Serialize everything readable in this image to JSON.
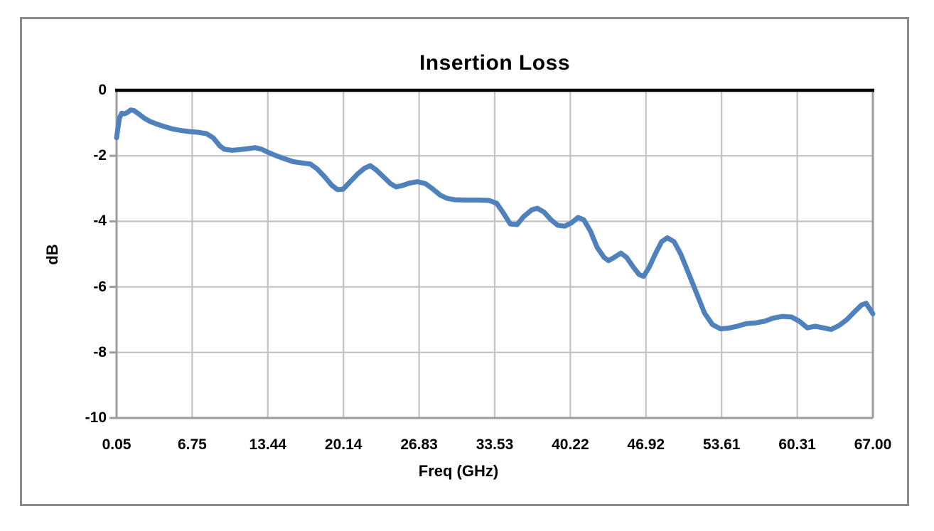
{
  "chart": {
    "title": "Insertion Loss",
    "x_axis_title": "Freq (GHz)",
    "y_axis_title": "dB"
  },
  "colors": {
    "series_line": "#4F81BD",
    "gridline": "#c3c3c3",
    "plot_border": "#9d9d9d",
    "zero_axis": "#000000",
    "chart_border": "#8a8a8a",
    "text": "#000000",
    "background": "#ffffff"
  },
  "chart_data": {
    "type": "line",
    "title": "Insertion Loss",
    "xlabel": "Freq (GHz)",
    "ylabel": "dB",
    "xlim": [
      0.05,
      67.0
    ],
    "ylim": [
      -10,
      0
    ],
    "x_tick_labels": [
      "0.05",
      "6.75",
      "13.44",
      "20.14",
      "26.83",
      "33.53",
      "40.22",
      "46.92",
      "53.61",
      "60.31",
      "67.00"
    ],
    "y_tick_labels": [
      "0",
      "-2",
      "-4",
      "-6",
      "-8",
      "-10"
    ],
    "grid": true,
    "legend": false,
    "series": [
      {
        "name": "Insertion Loss",
        "color": "#4F81BD",
        "points": [
          [
            0.05,
            -1.45
          ],
          [
            0.15,
            -1.2
          ],
          [
            0.3,
            -0.85
          ],
          [
            0.5,
            -0.7
          ],
          [
            0.75,
            -0.72
          ],
          [
            1.0,
            -0.68
          ],
          [
            1.3,
            -0.6
          ],
          [
            1.6,
            -0.62
          ],
          [
            2.0,
            -0.72
          ],
          [
            2.5,
            -0.85
          ],
          [
            3.0,
            -0.95
          ],
          [
            3.6,
            -1.03
          ],
          [
            4.2,
            -1.1
          ],
          [
            5.0,
            -1.18
          ],
          [
            5.8,
            -1.23
          ],
          [
            6.5,
            -1.26
          ],
          [
            7.2,
            -1.28
          ],
          [
            8.0,
            -1.32
          ],
          [
            8.6,
            -1.45
          ],
          [
            9.2,
            -1.7
          ],
          [
            9.6,
            -1.8
          ],
          [
            10.3,
            -1.83
          ],
          [
            11.0,
            -1.81
          ],
          [
            11.7,
            -1.78
          ],
          [
            12.3,
            -1.75
          ],
          [
            12.9,
            -1.8
          ],
          [
            13.5,
            -1.9
          ],
          [
            14.2,
            -2.0
          ],
          [
            15.0,
            -2.1
          ],
          [
            15.7,
            -2.18
          ],
          [
            16.5,
            -2.22
          ],
          [
            17.2,
            -2.25
          ],
          [
            17.8,
            -2.4
          ],
          [
            18.5,
            -2.65
          ],
          [
            19.1,
            -2.9
          ],
          [
            19.6,
            -3.03
          ],
          [
            20.1,
            -3.02
          ],
          [
            20.7,
            -2.8
          ],
          [
            21.4,
            -2.55
          ],
          [
            22.0,
            -2.38
          ],
          [
            22.5,
            -2.3
          ],
          [
            23.0,
            -2.42
          ],
          [
            23.7,
            -2.65
          ],
          [
            24.3,
            -2.85
          ],
          [
            24.8,
            -2.95
          ],
          [
            25.4,
            -2.9
          ],
          [
            26.0,
            -2.83
          ],
          [
            26.7,
            -2.79
          ],
          [
            27.4,
            -2.85
          ],
          [
            28.0,
            -3.0
          ],
          [
            28.7,
            -3.2
          ],
          [
            29.3,
            -3.3
          ],
          [
            30.0,
            -3.34
          ],
          [
            31.0,
            -3.35
          ],
          [
            32.0,
            -3.35
          ],
          [
            33.0,
            -3.36
          ],
          [
            33.7,
            -3.45
          ],
          [
            34.3,
            -3.75
          ],
          [
            34.9,
            -4.08
          ],
          [
            35.5,
            -4.1
          ],
          [
            36.1,
            -3.85
          ],
          [
            36.8,
            -3.65
          ],
          [
            37.3,
            -3.6
          ],
          [
            37.9,
            -3.72
          ],
          [
            38.5,
            -3.95
          ],
          [
            39.1,
            -4.12
          ],
          [
            39.7,
            -4.15
          ],
          [
            40.3,
            -4.05
          ],
          [
            40.9,
            -3.88
          ],
          [
            41.4,
            -3.95
          ],
          [
            42.0,
            -4.3
          ],
          [
            42.6,
            -4.8
          ],
          [
            43.2,
            -5.1
          ],
          [
            43.6,
            -5.2
          ],
          [
            44.1,
            -5.1
          ],
          [
            44.7,
            -4.97
          ],
          [
            45.2,
            -5.1
          ],
          [
            45.8,
            -5.4
          ],
          [
            46.3,
            -5.62
          ],
          [
            46.7,
            -5.68
          ],
          [
            47.2,
            -5.4
          ],
          [
            47.8,
            -4.95
          ],
          [
            48.3,
            -4.62
          ],
          [
            48.8,
            -4.5
          ],
          [
            49.4,
            -4.62
          ],
          [
            50.0,
            -5.0
          ],
          [
            50.7,
            -5.6
          ],
          [
            51.4,
            -6.2
          ],
          [
            52.1,
            -6.8
          ],
          [
            52.8,
            -7.15
          ],
          [
            53.5,
            -7.28
          ],
          [
            54.2,
            -7.26
          ],
          [
            55.0,
            -7.2
          ],
          [
            55.8,
            -7.12
          ],
          [
            56.6,
            -7.1
          ],
          [
            57.4,
            -7.05
          ],
          [
            58.2,
            -6.95
          ],
          [
            59.0,
            -6.9
          ],
          [
            59.8,
            -6.92
          ],
          [
            60.5,
            -7.05
          ],
          [
            61.2,
            -7.25
          ],
          [
            61.9,
            -7.2
          ],
          [
            62.6,
            -7.25
          ],
          [
            63.3,
            -7.3
          ],
          [
            64.0,
            -7.18
          ],
          [
            64.7,
            -7.0
          ],
          [
            65.4,
            -6.75
          ],
          [
            66.0,
            -6.55
          ],
          [
            66.4,
            -6.5
          ],
          [
            67.0,
            -6.82
          ]
        ]
      }
    ]
  }
}
